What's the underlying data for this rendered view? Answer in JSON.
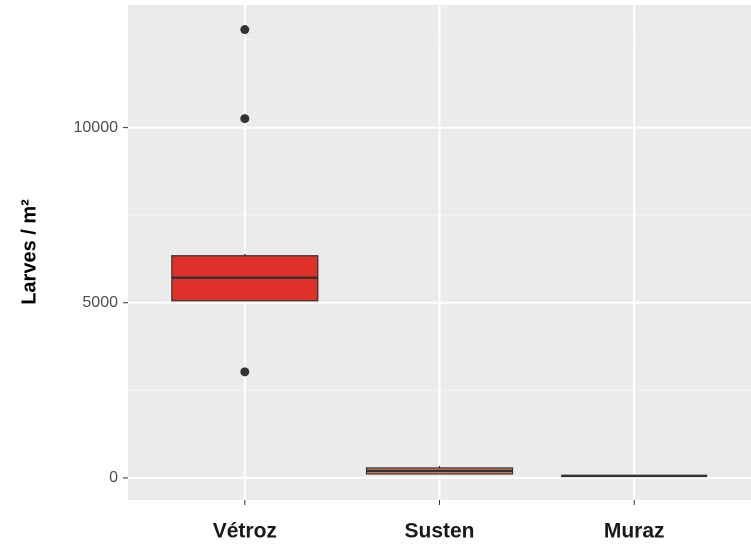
{
  "chart_data": {
    "type": "box",
    "ylabel": "Larves / m²",
    "categories": [
      "Vétroz",
      "Susten",
      "Muraz"
    ],
    "boxes": [
      {
        "color": "#e0302a",
        "min": 5057,
        "q1": 5057,
        "median": 5714,
        "q3": 6343,
        "max": 6400,
        "outliers": [
          12800,
          10257,
          3029
        ]
      },
      {
        "color": "#e8825a",
        "min": 100,
        "q1": 114,
        "median": 200,
        "q3": 286,
        "max": 343,
        "outliers": []
      },
      {
        "color": "#4aa84a",
        "min": 57,
        "q1": 57,
        "median": 57,
        "q3": 57,
        "max": 57,
        "outliers": []
      }
    ],
    "ylim": [
      -630,
      13500
    ],
    "yticks": [
      0,
      5000,
      10000
    ],
    "yminorticks": [
      2500,
      7500,
      12500
    ],
    "grid": true
  }
}
